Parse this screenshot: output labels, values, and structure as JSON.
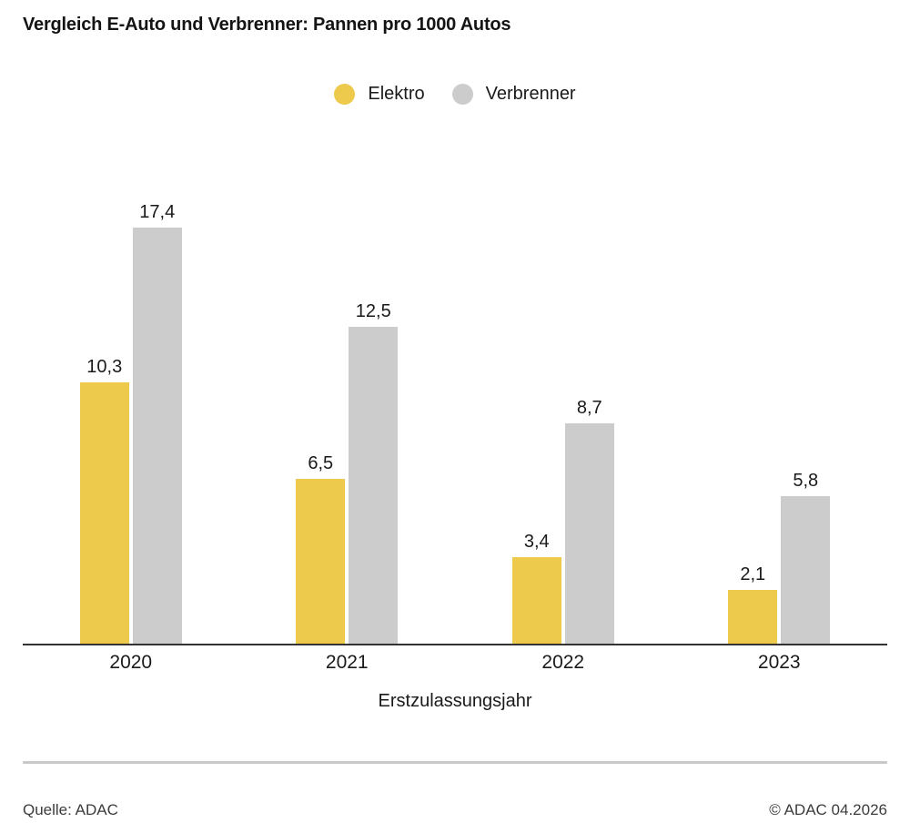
{
  "title": "Vergleich E-Auto und Verbrenner: Pannen pro 1000 Autos",
  "legend": {
    "items": [
      {
        "label": "Elektro",
        "color": "#EDC94C"
      },
      {
        "label": "Verbrenner",
        "color": "#CCCCCC"
      }
    ]
  },
  "chart_data": {
    "type": "bar",
    "categories": [
      "2020",
      "2021",
      "2022",
      "2023"
    ],
    "series": [
      {
        "name": "Elektro",
        "color": "#EDC94C",
        "values": [
          10.3,
          6.5,
          3.4,
          2.1
        ],
        "display_values": [
          "10,3",
          "6,5",
          "3,4",
          "2,1"
        ]
      },
      {
        "name": "Verbrenner",
        "color": "#CCCCCC",
        "values": [
          17.4,
          12.5,
          8.7,
          5.8
        ],
        "display_values": [
          "17,4",
          "12,5",
          "8,7",
          "5,8"
        ]
      }
    ],
    "title": "Vergleich E-Auto und Verbrenner: Pannen pro 1000 Autos",
    "xlabel": "Erstzulassungsjahr",
    "ylabel": "",
    "ylim": [
      0,
      17.4
    ],
    "grid": false,
    "legend_position": "top-center",
    "value_labels": "above-bars",
    "number_format": "decimal-comma"
  },
  "footer": {
    "source": "Quelle: ADAC",
    "copyright": "© ADAC 04.2026"
  }
}
